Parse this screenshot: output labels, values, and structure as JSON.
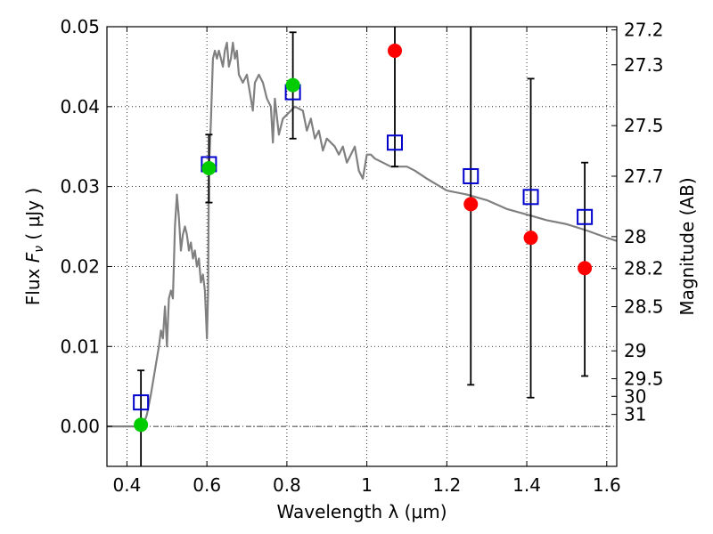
{
  "chart_data": {
    "type": "scatter",
    "xlabel": "Wavelength  λ (μm)",
    "ylabel": "Flux  F_ν  ( μJy )",
    "ylabel_right": "Magnitude (AB)",
    "xlim": [
      0.35,
      1.625
    ],
    "ylim": [
      -0.005,
      0.05
    ],
    "grid": true,
    "x_ticks": [
      {
        "value": 0.4,
        "label": "0.4"
      },
      {
        "value": 0.6,
        "label": "0.6"
      },
      {
        "value": 0.8,
        "label": "0.8"
      },
      {
        "value": 1.0,
        "label": "1"
      },
      {
        "value": 1.2,
        "label": "1.2"
      },
      {
        "value": 1.4,
        "label": "1.4"
      },
      {
        "value": 1.6,
        "label": "1.6"
      }
    ],
    "y_ticks": [
      {
        "value": 0.0,
        "label": "0.00"
      },
      {
        "value": 0.01,
        "label": "0.01"
      },
      {
        "value": 0.02,
        "label": "0.02"
      },
      {
        "value": 0.03,
        "label": "0.03"
      },
      {
        "value": 0.04,
        "label": "0.04"
      },
      {
        "value": 0.05,
        "label": "0.05"
      }
    ],
    "mag_ticks": [
      {
        "value": 27.2,
        "label": "27.2"
      },
      {
        "value": 27.3,
        "label": "27.3"
      },
      {
        "value": 27.5,
        "label": "27.5"
      },
      {
        "value": 27.7,
        "label": "27.7"
      },
      {
        "value": 28,
        "label": "28"
      },
      {
        "value": 28.2,
        "label": "28.2"
      },
      {
        "value": 28.5,
        "label": "28.5"
      },
      {
        "value": 29,
        "label": "29"
      },
      {
        "value": 29.5,
        "label": "29.5"
      },
      {
        "value": 30,
        "label": "30"
      },
      {
        "value": 31,
        "label": "31"
      }
    ],
    "series": [
      {
        "kind": "line",
        "color": "#808080",
        "x": [
          0.35,
          0.4,
          0.42,
          0.44,
          0.45,
          0.46,
          0.47,
          0.48,
          0.485,
          0.49,
          0.495,
          0.5,
          0.505,
          0.51,
          0.515,
          0.52,
          0.525,
          0.53,
          0.535,
          0.54,
          0.545,
          0.55,
          0.555,
          0.56,
          0.565,
          0.57,
          0.575,
          0.58,
          0.585,
          0.59,
          0.595,
          0.6,
          0.603,
          0.605,
          0.61,
          0.615,
          0.62,
          0.625,
          0.63,
          0.635,
          0.64,
          0.645,
          0.65,
          0.655,
          0.66,
          0.665,
          0.67,
          0.675,
          0.68,
          0.69,
          0.7,
          0.71,
          0.715,
          0.72,
          0.73,
          0.74,
          0.75,
          0.76,
          0.765,
          0.77,
          0.78,
          0.79,
          0.8,
          0.82,
          0.84,
          0.85,
          0.86,
          0.87,
          0.88,
          0.89,
          0.9,
          0.91,
          0.92,
          0.93,
          0.94,
          0.95,
          0.96,
          0.97,
          0.98,
          0.99,
          1.0,
          1.01,
          1.02,
          1.04,
          1.06,
          1.08,
          1.1,
          1.12,
          1.15,
          1.2,
          1.25,
          1.3,
          1.35,
          1.4,
          1.45,
          1.5,
          1.55,
          1.6,
          1.625
        ],
        "y": [
          0.0,
          0.0,
          0.0,
          0.0,
          0.0015,
          0.004,
          0.007,
          0.01,
          0.012,
          0.011,
          0.015,
          0.01,
          0.016,
          0.017,
          0.016,
          0.025,
          0.029,
          0.026,
          0.022,
          0.024,
          0.025,
          0.024,
          0.022,
          0.023,
          0.021,
          0.022,
          0.02,
          0.021,
          0.018,
          0.019,
          0.017,
          0.011,
          0.017,
          0.032,
          0.038,
          0.046,
          0.047,
          0.046,
          0.047,
          0.046,
          0.045,
          0.047,
          0.048,
          0.045,
          0.046,
          0.048,
          0.046,
          0.047,
          0.044,
          0.043,
          0.044,
          0.041,
          0.0395,
          0.043,
          0.044,
          0.043,
          0.041,
          0.04,
          0.0355,
          0.041,
          0.0365,
          0.0385,
          0.039,
          0.04,
          0.0395,
          0.037,
          0.0385,
          0.036,
          0.037,
          0.0345,
          0.036,
          0.0355,
          0.035,
          0.034,
          0.035,
          0.033,
          0.034,
          0.035,
          0.032,
          0.031,
          0.034,
          0.034,
          0.0335,
          0.033,
          0.0325,
          0.0325,
          0.0325,
          0.032,
          0.031,
          0.0295,
          0.029,
          0.0283,
          0.0272,
          0.0265,
          0.0258,
          0.0253,
          0.0245,
          0.0236,
          0.0232
        ]
      },
      {
        "kind": "square",
        "color": "#0000cc",
        "x": [
          0.435,
          0.605,
          0.815,
          1.07,
          1.26,
          1.41,
          1.545
        ],
        "y": [
          0.003,
          0.0328,
          0.0418,
          0.0355,
          0.0313,
          0.0287,
          0.0262
        ]
      },
      {
        "kind": "circle",
        "color": "#00cc00",
        "x": [
          0.435,
          0.605,
          0.815
        ],
        "y": [
          0.0002,
          0.0323,
          0.0427
        ]
      },
      {
        "kind": "circle",
        "color": "#ff0000",
        "x": [
          1.07,
          1.26,
          1.41,
          1.545
        ],
        "y": [
          0.047,
          0.0278,
          0.0236,
          0.0198
        ]
      }
    ],
    "errorbars": [
      {
        "x": 0.435,
        "y_low": -0.005,
        "y_high": 0.007
      },
      {
        "x": 0.605,
        "y_low": 0.028,
        "y_high": 0.0365
      },
      {
        "x": 0.815,
        "y_low": 0.036,
        "y_high": 0.0493
      },
      {
        "x": 1.07,
        "y_low": 0.0325,
        "y_high": 0.05
      },
      {
        "x": 1.26,
        "y_low": 0.0052,
        "y_high": 0.05
      },
      {
        "x": 1.41,
        "y_low": 0.0036,
        "y_high": 0.0435
      },
      {
        "x": 1.545,
        "y_low": 0.0063,
        "y_high": 0.033
      }
    ]
  }
}
